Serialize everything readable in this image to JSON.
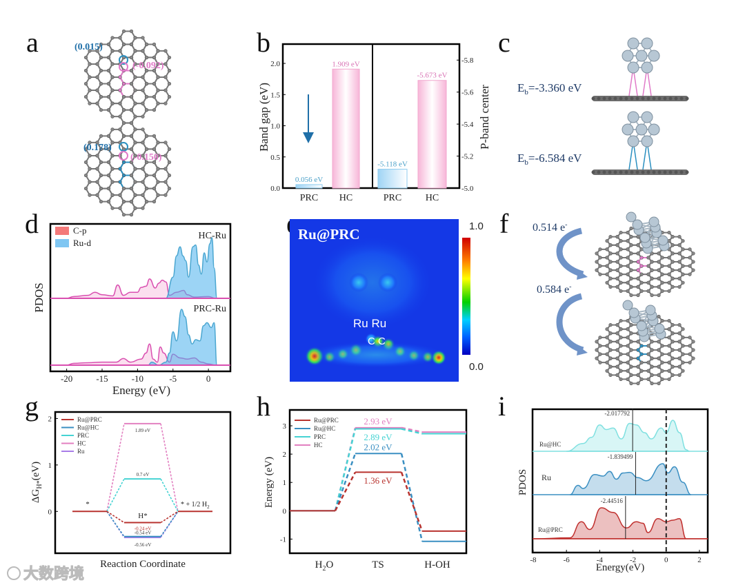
{
  "panels": {
    "a": {
      "letter": "a",
      "top_labels": [
        "(0.015)",
        "(-0.092)"
      ],
      "bottom_labels": [
        "(0.178)",
        "(-0.150)"
      ]
    },
    "b": {
      "letter": "b"
    },
    "c": {
      "letter": "c",
      "eb1": {
        "main": "E",
        "sub": "b",
        "value": "=-3.360 eV"
      },
      "eb2": {
        "main": "E",
        "sub": "b",
        "value": "=-6.584 eV"
      }
    },
    "d": {
      "letter": "d"
    },
    "e": {
      "letter": "e",
      "title": "Ru@PRC",
      "ru_label": "Ru  Ru",
      "c_label": "C C",
      "cbar_max": "1.0",
      "cbar_min": "0.0"
    },
    "f": {
      "letter": "f",
      "charge1": "0.514 e",
      "charge2": "0.584 e",
      "sup": "-"
    },
    "g": {
      "letter": "g"
    },
    "h": {
      "letter": "h"
    },
    "i": {
      "letter": "i"
    }
  },
  "watermark": "大数跨境",
  "colors": {
    "pink": "#e27fc0",
    "blue": "#3a8fc2",
    "cyan": "#45d3d3",
    "red": "#b8322e",
    "purple": "#b07ae0",
    "lightblue": "#8fd0f0"
  },
  "chart_data": [
    {
      "id": "b",
      "type": "bar",
      "left": {
        "categories": [
          "PRC",
          "HC"
        ],
        "values": [
          0.056,
          1.909
        ],
        "labels": [
          "0.056 eV",
          "1.909 eV"
        ],
        "ylabel": "Band gap (eV)",
        "ylim": [
          0,
          2.31
        ],
        "ticks": [
          "0.0",
          "0.5",
          "1.0",
          "1.5",
          "2.0"
        ]
      },
      "right": {
        "categories": [
          "PRC",
          "HC"
        ],
        "values": [
          -5.118,
          -5.673
        ],
        "labels": [
          "-5.118 eV",
          "-5.673 eV"
        ],
        "ylabel": "P-band center",
        "ylim": [
          -5.0,
          -5.9
        ],
        "ticks": [
          "-5.0",
          "-5.2",
          "-5.4",
          "-5.6",
          "-5.8"
        ]
      }
    },
    {
      "id": "d",
      "type": "area",
      "xlabel": "Energy (eV)",
      "ylabel": "PDOS",
      "xlim": [
        -22.3,
        3.1
      ],
      "xticks": [
        "-20",
        "-15",
        "-10",
        "-5",
        "0"
      ],
      "legend": [
        "C-p",
        "Ru-d"
      ],
      "panels": [
        {
          "name": "HC-Ru",
          "ru_d": [
            [
              -6,
              0
            ],
            [
              -5,
              0.35
            ],
            [
              -4.5,
              0.7
            ],
            [
              -4,
              0.85
            ],
            [
              -3.6,
              0.7
            ],
            [
              -3.2,
              0.62
            ],
            [
              -2.8,
              0.35
            ],
            [
              -2.2,
              0.85
            ],
            [
              -1.8,
              0.88
            ],
            [
              -1.4,
              0.55
            ],
            [
              -1,
              0.4
            ],
            [
              -0.6,
              0.75
            ],
            [
              -0.2,
              0.6
            ],
            [
              0.2,
              0.9
            ],
            [
              0.5,
              1.0
            ],
            [
              0.8,
              0.5
            ],
            [
              1.2,
              0
            ]
          ],
          "c_p": [
            [
              -20,
              0
            ],
            [
              -19,
              0.03
            ],
            [
              -17,
              0.05
            ],
            [
              -16,
              0.1
            ],
            [
              -15,
              0.06
            ],
            [
              -13.5,
              0.04
            ],
            [
              -12.8,
              0.22
            ],
            [
              -12,
              0.05
            ],
            [
              -11,
              0.1
            ],
            [
              -10,
              0.1
            ],
            [
              -9.5,
              0.18
            ],
            [
              -8.8,
              0.2
            ],
            [
              -8.3,
              0.32
            ],
            [
              -7.5,
              0.17
            ],
            [
              -7,
              0.25
            ],
            [
              -6.5,
              0.3
            ],
            [
              -6,
              0.27
            ],
            [
              -5.5,
              0.05
            ],
            [
              -4.5,
              0.1
            ],
            [
              -3.5,
              0.13
            ],
            [
              -3,
              0.06
            ],
            [
              -2,
              0.02
            ],
            [
              0,
              0.03
            ],
            [
              1,
              0
            ]
          ]
        },
        {
          "name": "PRC-Ru",
          "ru_d": [
            [
              -8.5,
              0
            ],
            [
              -8,
              0.05
            ],
            [
              -7,
              0
            ],
            [
              -6,
              0.05
            ],
            [
              -5.5,
              0.2
            ],
            [
              -5,
              0.55
            ],
            [
              -4.5,
              0.4
            ],
            [
              -3.8,
              0.92
            ],
            [
              -3.3,
              0.8
            ],
            [
              -2.8,
              0.5
            ],
            [
              -2.3,
              0.35
            ],
            [
              -1.8,
              0.42
            ],
            [
              -1.2,
              0.4
            ],
            [
              -0.7,
              0.65
            ],
            [
              -0.2,
              0.7
            ],
            [
              0.4,
              0.62
            ],
            [
              0.8,
              0.7
            ],
            [
              1.2,
              0
            ]
          ],
          "c_p": [
            [
              -20,
              0
            ],
            [
              -19,
              0.03
            ],
            [
              -17,
              0.04
            ],
            [
              -15,
              0.05
            ],
            [
              -13,
              0.05
            ],
            [
              -12,
              0.11
            ],
            [
              -11,
              0.05
            ],
            [
              -9.5,
              0.1
            ],
            [
              -8.8,
              0.2
            ],
            [
              -8.3,
              0.35
            ],
            [
              -7.8,
              0.1
            ],
            [
              -7.2,
              0.05
            ],
            [
              -6.8,
              0.3
            ],
            [
              -6.3,
              0.2
            ],
            [
              -5.5,
              0.05
            ],
            [
              -5,
              0.18
            ],
            [
              -4,
              0.12
            ],
            [
              -3,
              0.1
            ],
            [
              -2,
              0.12
            ],
            [
              -1,
              0.05
            ],
            [
              0,
              0.02
            ],
            [
              1,
              0
            ]
          ]
        }
      ]
    },
    {
      "id": "g",
      "type": "line",
      "xlabel": "Reaction Coordinate",
      "ylabel": "ΔG",
      "ylabel_sub": "H*",
      "ylabel_unit": "(eV)",
      "ylim": [
        -0.9,
        2.14
      ],
      "yticks": [
        0,
        1,
        2
      ],
      "state_labels": [
        "*",
        "H*",
        "* + 1/2 H",
        "2"
      ],
      "series": [
        {
          "name": "Ru@PRC",
          "value": -0.24,
          "label": "-0.24 eV",
          "color": "#b8322e"
        },
        {
          "name": "Ru@HC",
          "value": -0.54,
          "label": "-0.54 eV",
          "color": "#3a8fc2"
        },
        {
          "name": "PRC",
          "value": 0.7,
          "label": "0.7 eV",
          "color": "#45d3d3"
        },
        {
          "name": "HC",
          "value": 1.89,
          "label": "1.89 eV",
          "color": "#e27fc0"
        },
        {
          "name": "Ru",
          "value": -0.56,
          "label": "-0.56 eV",
          "color": "#a77ce8"
        }
      ]
    },
    {
      "id": "h",
      "type": "line",
      "xlabel_states": [
        "H",
        "2",
        "O",
        "TS",
        "H-OH"
      ],
      "ylabel": "Energy (eV)",
      "ylim": [
        -1.5,
        3.56
      ],
      "yticks": [
        -1,
        0,
        1,
        2,
        3
      ],
      "series": [
        {
          "name": "Ru@PRC",
          "values": [
            0,
            1.36,
            -0.72
          ],
          "label": "1.36 eV",
          "color": "#b8322e"
        },
        {
          "name": "Ru@HC",
          "values": [
            0,
            2.02,
            -1.08
          ],
          "label": "2.02 eV",
          "color": "#3a8fc2"
        },
        {
          "name": "PRC",
          "values": [
            0,
            2.89,
            2.72
          ],
          "label": "2.89 eV",
          "color": "#45d3d3"
        },
        {
          "name": "HC",
          "values": [
            0,
            2.93,
            2.78
          ],
          "label": "2.93 eV",
          "color": "#e27fc0"
        }
      ]
    },
    {
      "id": "i",
      "type": "area",
      "xlabel": "Energy(eV)",
      "ylabel": "PDOS",
      "xlim": [
        -8.04,
        2.5
      ],
      "xticks": [
        -8,
        -6,
        -4,
        -2,
        0,
        2
      ],
      "series": [
        {
          "name": "Ru@HC",
          "center": -2.017792,
          "center_label": "-2.017792",
          "color": "#7fe0e0",
          "points": [
            [
              -6,
              0
            ],
            [
              -5,
              0.25
            ],
            [
              -4.5,
              0.45
            ],
            [
              -4,
              0.85
            ],
            [
              -3.6,
              0.7
            ],
            [
              -3.2,
              0.75
            ],
            [
              -2.7,
              0.4
            ],
            [
              -2.2,
              0.9
            ],
            [
              -1.8,
              0.85
            ],
            [
              -1.3,
              0.6
            ],
            [
              -0.9,
              0.4
            ],
            [
              -0.3,
              0.75
            ],
            [
              0,
              0.6
            ],
            [
              0.4,
              1.0
            ],
            [
              0.8,
              0.6
            ],
            [
              1.2,
              0.05
            ],
            [
              1.4,
              0
            ]
          ]
        },
        {
          "name": "Ru",
          "center": -1.839499,
          "center_label": "-1.839499",
          "color": "#3a8fc2",
          "points": [
            [
              -5.8,
              0
            ],
            [
              -5.3,
              0.3
            ],
            [
              -5,
              0.2
            ],
            [
              -4.3,
              0.65
            ],
            [
              -3.8,
              0.6
            ],
            [
              -3.4,
              0.75
            ],
            [
              -3,
              0.5
            ],
            [
              -2.6,
              0.7
            ],
            [
              -2.2,
              0.72
            ],
            [
              -1.7,
              0.55
            ],
            [
              -1.2,
              0.45
            ],
            [
              -0.2,
              1.0
            ],
            [
              0.1,
              0.7
            ],
            [
              0.5,
              0.9
            ],
            [
              1,
              0.4
            ],
            [
              1.5,
              0
            ]
          ]
        },
        {
          "name": "Ru@PRC",
          "center": -2.44516,
          "center_label": "-2.44516",
          "color": "#c0302e",
          "points": [
            [
              -8,
              0
            ],
            [
              -5.8,
              0.03
            ],
            [
              -5.1,
              0.55
            ],
            [
              -4.6,
              0.3
            ],
            [
              -3.9,
              1.0
            ],
            [
              -3.2,
              0.85
            ],
            [
              -2.4,
              0.35
            ],
            [
              -1.8,
              0.55
            ],
            [
              -1.4,
              0.5
            ],
            [
              -1.1,
              0.2
            ],
            [
              -0.5,
              0.65
            ],
            [
              0,
              0.55
            ],
            [
              0.4,
              0.6
            ],
            [
              0.8,
              0.65
            ],
            [
              1.2,
              0
            ],
            [
              2.5,
              0
            ]
          ]
        }
      ]
    }
  ]
}
